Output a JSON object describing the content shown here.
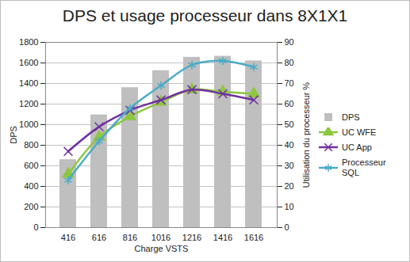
{
  "chart_data": {
    "type": "bar",
    "title": "DPS et usage processeur dans 8X1X1",
    "xlabel": "Charge VSTS",
    "ylabel": "DPS",
    "y2label": "Utilisation du processeur %",
    "categories": [
      416,
      616,
      816,
      1016,
      1216,
      1416,
      1616
    ],
    "series": [
      {
        "name": "DPS",
        "type": "bar",
        "color": "#bfbfbf",
        "values": [
          660,
          1095,
          1360,
          1525,
          1655,
          1665,
          1620
        ]
      },
      {
        "name": "UC WFE",
        "type": "line",
        "axis": "y2",
        "color": "#8dc63f",
        "marker": "triangle",
        "values": [
          26,
          44,
          54,
          61,
          67,
          66,
          65
        ]
      },
      {
        "name": "UC App",
        "type": "line",
        "axis": "y2",
        "color": "#7030a0",
        "marker": "times",
        "values": [
          37,
          49,
          57,
          62,
          67,
          65,
          62
        ]
      },
      {
        "name": "Processeur SQL",
        "type": "line",
        "axis": "y2",
        "color": "#4bacc6",
        "marker": "asterisk",
        "values": [
          23,
          42,
          58,
          69,
          79,
          81,
          78
        ]
      }
    ],
    "ylim": [
      0,
      1800
    ],
    "yticks": [
      0,
      200,
      400,
      600,
      800,
      1000,
      1200,
      1400,
      1600,
      1800
    ],
    "y2lim": [
      0,
      90
    ],
    "y2ticks": [
      0,
      10,
      20,
      30,
      40,
      50,
      60,
      70,
      80,
      90
    ],
    "grid": true,
    "legend": "right"
  }
}
